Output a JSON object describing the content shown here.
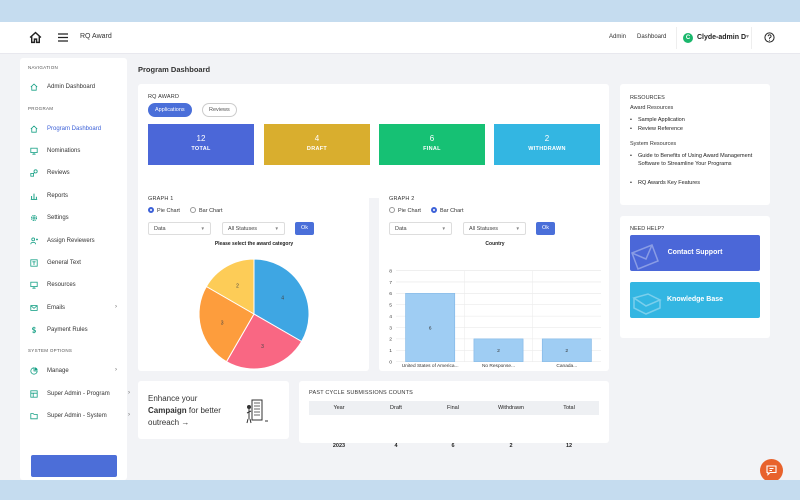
{
  "topbar": {
    "app_title": "RQ Award",
    "links": [
      "Admin",
      "Dashboard"
    ],
    "avatar_letter": "C",
    "user_name": "Clyde-admin D"
  },
  "sidebar": {
    "sections": {
      "navigation": "NAVIGATION",
      "program": "PROGRAM",
      "system": "SYSTEM OPTIONS"
    },
    "items": [
      {
        "label": "Admin Dashboard",
        "icon": "home-icon"
      },
      {
        "label": "Program Dashboard",
        "icon": "home-icon",
        "active": true
      },
      {
        "label": "Nominations",
        "icon": "monitor-icon"
      },
      {
        "label": "Reviews",
        "icon": "reviews-icon"
      },
      {
        "label": "Reports",
        "icon": "bar-chart-icon"
      },
      {
        "label": "Settings",
        "icon": "gear-icon"
      },
      {
        "label": "Assign Reviewers",
        "icon": "user-plus-icon"
      },
      {
        "label": "General Text",
        "icon": "text-icon"
      },
      {
        "label": "Resources",
        "icon": "monitor-icon"
      },
      {
        "label": "Emails",
        "icon": "mail-icon",
        "arrow": "›"
      },
      {
        "label": "Payment Rules",
        "icon": "dollar-icon"
      },
      {
        "label": "Manage",
        "icon": "pie-icon",
        "arrow": "›"
      },
      {
        "label": "Super Admin - Program",
        "icon": "layout-icon",
        "arrow": "›"
      },
      {
        "label": "Super Admin - System",
        "icon": "folder-icon",
        "arrow": "›"
      }
    ]
  },
  "page_title": "Program Dashboard",
  "rq_award": {
    "label": "RQ AWARD",
    "tabs": [
      "Applications",
      "Reviews"
    ],
    "stats": [
      {
        "value": "12",
        "label": "TOTAL",
        "color": "#4b67d8"
      },
      {
        "value": "4",
        "label": "DRAFT",
        "color": "#d9ae2e"
      },
      {
        "value": "6",
        "label": "FINAL",
        "color": "#16c174"
      },
      {
        "value": "2",
        "label": "WITHDRAWN",
        "color": "#33b6e2"
      }
    ]
  },
  "graph1": {
    "title": "GRAPH 1",
    "radio": [
      "Pie Chart",
      "Bar Chart"
    ],
    "select1": "Data",
    "select2": "All Statuses",
    "ok": "Ok",
    "chart_title": "Please select the award category"
  },
  "graph2": {
    "title": "GRAPH 2",
    "radio": [
      "Pie Chart",
      "Bar Chart"
    ],
    "select1": "Data",
    "select2": "All Statuses",
    "ok": "Ok"
  },
  "chart_data": [
    {
      "type": "pie",
      "title": "Please select the award category",
      "slices": [
        {
          "value": 4,
          "color": "#3ea6e3"
        },
        {
          "value": 3,
          "color": "#f96783"
        },
        {
          "value": 3,
          "color": "#fd9d3d"
        },
        {
          "value": 2,
          "color": "#fdcc57"
        }
      ]
    },
    {
      "type": "bar",
      "title": "Country",
      "categories": [
        "United States of America...",
        "No Response...",
        "Canada..."
      ],
      "values": [
        6,
        2,
        2
      ],
      "ylim": [
        0,
        8
      ],
      "yticks": [
        0,
        1,
        2,
        3,
        4,
        5,
        6,
        7,
        8
      ],
      "color": "#9fcdf3",
      "grid": true
    }
  ],
  "resources": {
    "title": "RESOURCES",
    "award_heading": "Award Resources",
    "award_items": [
      "Sample Application",
      "Review Reference"
    ],
    "system_heading": "System Resources",
    "system_items": [
      "Guide to Benefits of Using Award Management Software to Streamline Your Programs",
      "RQ Awards Key Features"
    ]
  },
  "help": {
    "title": "NEED HELP?",
    "contact": {
      "label": "Contact Support",
      "color": "#4b67d8"
    },
    "kb": {
      "label": "Knowledge Base",
      "color": "#33b6e2"
    }
  },
  "promo": {
    "line1": "Enhance your",
    "line2_bold": "Campaign",
    "line2_rest": " for better",
    "line3": "outreach →"
  },
  "past_cycle": {
    "title": "PAST CYCLE SUBMISSIONS COUNTS",
    "headers": [
      "Year",
      "Draft",
      "Final",
      "Withdrawn",
      "Total"
    ],
    "row": [
      "2023",
      "4",
      "6",
      "2",
      "12"
    ]
  }
}
